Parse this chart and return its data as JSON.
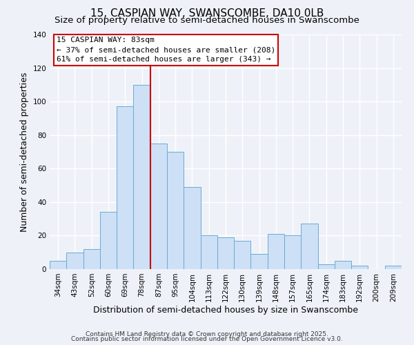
{
  "title": "15, CASPIAN WAY, SWANSCOMBE, DA10 0LB",
  "subtitle": "Size of property relative to semi-detached houses in Swanscombe",
  "xlabel": "Distribution of semi-detached houses by size in Swanscombe",
  "ylabel": "Number of semi-detached properties",
  "bar_labels": [
    "34sqm",
    "43sqm",
    "52sqm",
    "60sqm",
    "69sqm",
    "78sqm",
    "87sqm",
    "95sqm",
    "104sqm",
    "113sqm",
    "122sqm",
    "130sqm",
    "139sqm",
    "148sqm",
    "157sqm",
    "165sqm",
    "174sqm",
    "183sqm",
    "192sqm",
    "200sqm",
    "209sqm"
  ],
  "bar_values": [
    5,
    10,
    12,
    34,
    97,
    110,
    75,
    70,
    49,
    20,
    19,
    17,
    9,
    21,
    20,
    27,
    3,
    5,
    2,
    0,
    2
  ],
  "bar_color": "#cde0f5",
  "bar_edge_color": "#6aaad4",
  "ylim": [
    0,
    140
  ],
  "yticks": [
    0,
    20,
    40,
    60,
    80,
    100,
    120,
    140
  ],
  "property_line_x": 5.5,
  "property_line_color": "#cc0000",
  "annotation_title": "15 CASPIAN WAY: 83sqm",
  "annotation_line1": "← 37% of semi-detached houses are smaller (208)",
  "annotation_line2": "61% of semi-detached houses are larger (343) →",
  "annotation_box_color": "#ffffff",
  "annotation_box_edge_color": "#cc0000",
  "footer1": "Contains HM Land Registry data © Crown copyright and database right 2025.",
  "footer2": "Contains public sector information licensed under the Open Government Licence v3.0.",
  "background_color": "#eef2f8",
  "grid_color": "#ffffff",
  "title_fontsize": 11,
  "subtitle_fontsize": 9.5,
  "axis_label_fontsize": 9,
  "tick_fontsize": 7.5,
  "annotation_fontsize": 8,
  "footer_fontsize": 6.5
}
